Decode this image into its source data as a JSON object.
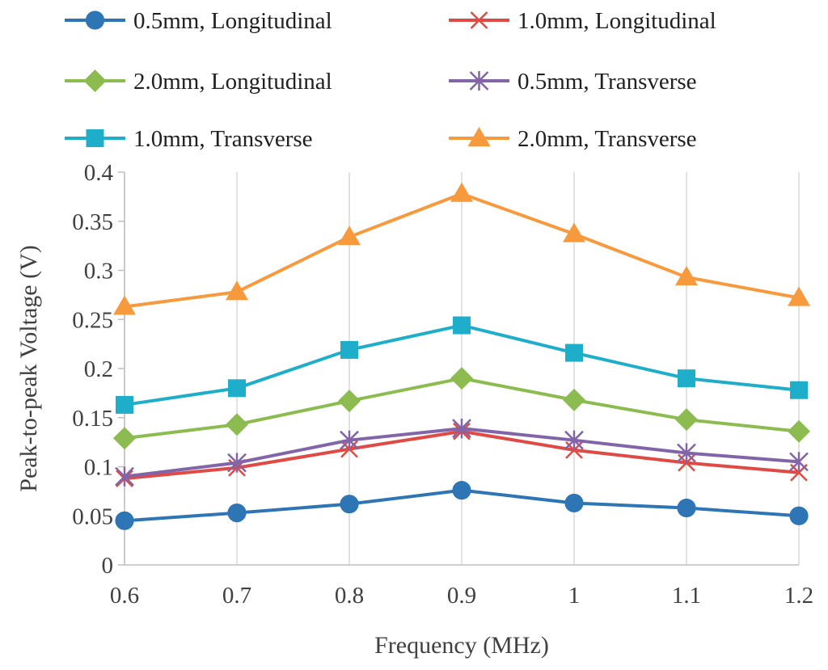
{
  "chart_data": {
    "type": "line",
    "title": "",
    "xlabel": "Frequency (MHz)",
    "ylabel": "Peak-to-peak Voltage (V)",
    "x": [
      0.6,
      0.7,
      0.8,
      0.9,
      1.0,
      1.1,
      1.2
    ],
    "x_tick_labels": [
      "0.6",
      "0.7",
      "0.8",
      "0.9",
      "1",
      "1.1",
      "1.2"
    ],
    "y_ticks": [
      0,
      0.05,
      0.1,
      0.15,
      0.2,
      0.25,
      0.3,
      0.35,
      0.4
    ],
    "y_tick_labels": [
      "0",
      "0.05",
      "0.1",
      "0.15",
      "0.2",
      "0.25",
      "0.3",
      "0.35",
      "0.4"
    ],
    "xlim": [
      0.6,
      1.2
    ],
    "ylim": [
      0,
      0.4
    ],
    "grid": "vertical",
    "legend_position": "top",
    "series": [
      {
        "name": "0.5mm, Longitudinal",
        "color": "#2e75b6",
        "marker": "circle",
        "values": [
          0.045,
          0.053,
          0.062,
          0.076,
          0.063,
          0.058,
          0.05
        ]
      },
      {
        "name": "1.0mm, Longitudinal",
        "color": "#e04a44",
        "marker": "x",
        "values": [
          0.088,
          0.099,
          0.118,
          0.136,
          0.117,
          0.104,
          0.094
        ]
      },
      {
        "name": "2.0mm, Longitudinal",
        "color": "#8cbc4f",
        "marker": "diamond",
        "values": [
          0.129,
          0.143,
          0.167,
          0.19,
          0.168,
          0.148,
          0.136
        ]
      },
      {
        "name": "0.5mm, Transverse",
        "color": "#8264a8",
        "marker": "star",
        "values": [
          0.09,
          0.104,
          0.127,
          0.139,
          0.127,
          0.114,
          0.105
        ]
      },
      {
        "name": "1.0mm, Transverse",
        "color": "#1eaec9",
        "marker": "square",
        "values": [
          0.163,
          0.18,
          0.219,
          0.244,
          0.216,
          0.19,
          0.178
        ]
      },
      {
        "name": "2.0mm, Transverse",
        "color": "#f79a3e",
        "marker": "triangle",
        "values": [
          0.263,
          0.278,
          0.334,
          0.378,
          0.337,
          0.293,
          0.272
        ]
      }
    ]
  }
}
